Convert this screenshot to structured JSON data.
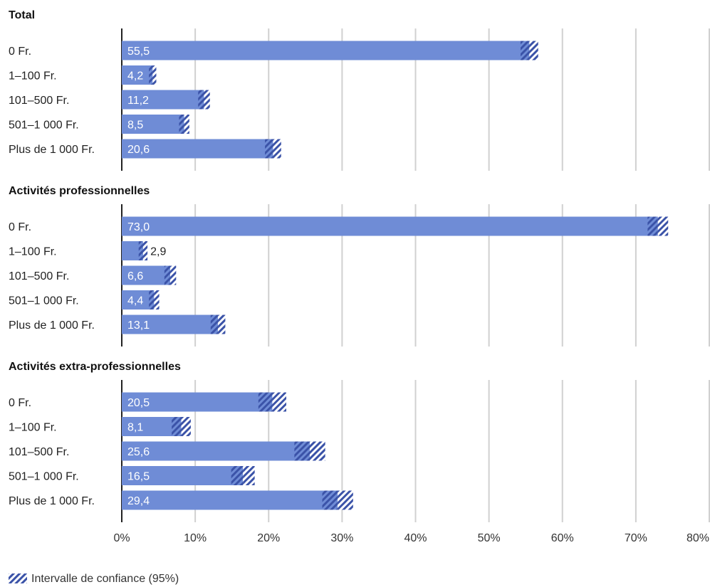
{
  "chart_data": {
    "type": "bar",
    "orientation": "horizontal",
    "x_unit": "%",
    "xlim": [
      0,
      80
    ],
    "x_ticks": [
      0,
      10,
      20,
      30,
      40,
      50,
      60,
      70,
      80
    ],
    "x_tick_labels": [
      "0%",
      "10%",
      "20%",
      "30%",
      "40%",
      "50%",
      "60%",
      "70%",
      "80%"
    ],
    "grid": true,
    "categories": [
      "0 Fr.",
      "1–100 Fr.",
      "101–500 Fr.",
      "501–1 000 Fr.",
      "Plus de 1 000 Fr."
    ],
    "panels": [
      {
        "title": "Total",
        "values": [
          55.5,
          4.2,
          11.2,
          8.5,
          20.6
        ],
        "value_labels": [
          "55,5",
          "4,2",
          "11,2",
          "8,5",
          "20,6"
        ],
        "ci_low": [
          54.3,
          3.7,
          10.4,
          7.8,
          19.5
        ],
        "ci_high": [
          56.7,
          4.7,
          12.0,
          9.2,
          21.7
        ]
      },
      {
        "title": "Activités professionnelles",
        "values": [
          73.0,
          2.9,
          6.6,
          4.4,
          13.1
        ],
        "value_labels": [
          "73,0",
          "2,9",
          "6,6",
          "4,4",
          "13,1"
        ],
        "ci_low": [
          71.6,
          2.3,
          5.8,
          3.7,
          12.1
        ],
        "ci_high": [
          74.4,
          3.5,
          7.4,
          5.1,
          14.1
        ]
      },
      {
        "title": "Activités extra-professionnelles",
        "values": [
          20.5,
          8.1,
          25.6,
          16.5,
          29.4
        ],
        "value_labels": [
          "20,5",
          "8,1",
          "25,6",
          "16,5",
          "29,4"
        ],
        "ci_low": [
          18.6,
          6.8,
          23.5,
          14.9,
          27.3
        ],
        "ci_high": [
          22.4,
          9.4,
          27.7,
          18.1,
          31.5
        ]
      }
    ],
    "legend": {
      "label": "Intervalle de confiance (95%)",
      "placement": "bottom-left"
    },
    "colors": {
      "bar": "#6f8cd6",
      "ci_stripe": "#3b53a8",
      "grid": "#d0d0d0",
      "axis": "#222222",
      "value_text_inside": "#ffffff",
      "value_text_outside": "#222222"
    }
  }
}
